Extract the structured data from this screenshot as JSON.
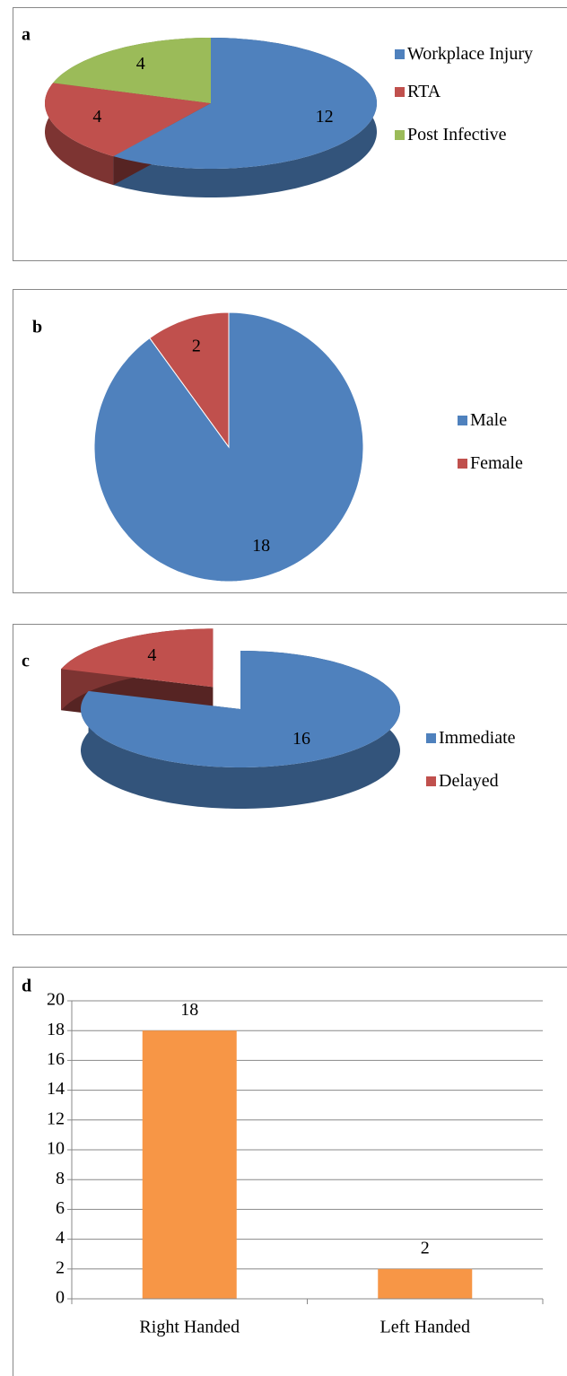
{
  "chart_data": [
    {
      "type": "pie",
      "title": "a",
      "three_d": true,
      "categories": [
        "Workplace Injury",
        "RTA",
        "Post Infective"
      ],
      "values": [
        12,
        4,
        4
      ],
      "colors": [
        "#4f81bd",
        "#c0504d",
        "#9bbb59"
      ],
      "legend": "right"
    },
    {
      "type": "pie",
      "title": "b",
      "three_d": false,
      "categories": [
        "Male",
        "Female"
      ],
      "values": [
        18,
        2
      ],
      "colors": [
        "#4f81bd",
        "#c0504d"
      ],
      "legend": "right"
    },
    {
      "type": "pie",
      "title": "c",
      "three_d": true,
      "explode": [
        false,
        true
      ],
      "categories": [
        "Immediate",
        "Delayed"
      ],
      "values": [
        16,
        4
      ],
      "colors": [
        "#4f81bd",
        "#c0504d"
      ],
      "legend": "right"
    },
    {
      "type": "bar",
      "title": "d",
      "categories": [
        "Right Handed",
        "Left Handed"
      ],
      "values": [
        18,
        2
      ],
      "color": "#f79646",
      "ylim": [
        0,
        20
      ],
      "yticks": [
        0,
        2,
        4,
        6,
        8,
        10,
        12,
        14,
        16,
        18,
        20
      ],
      "grid": true
    }
  ]
}
